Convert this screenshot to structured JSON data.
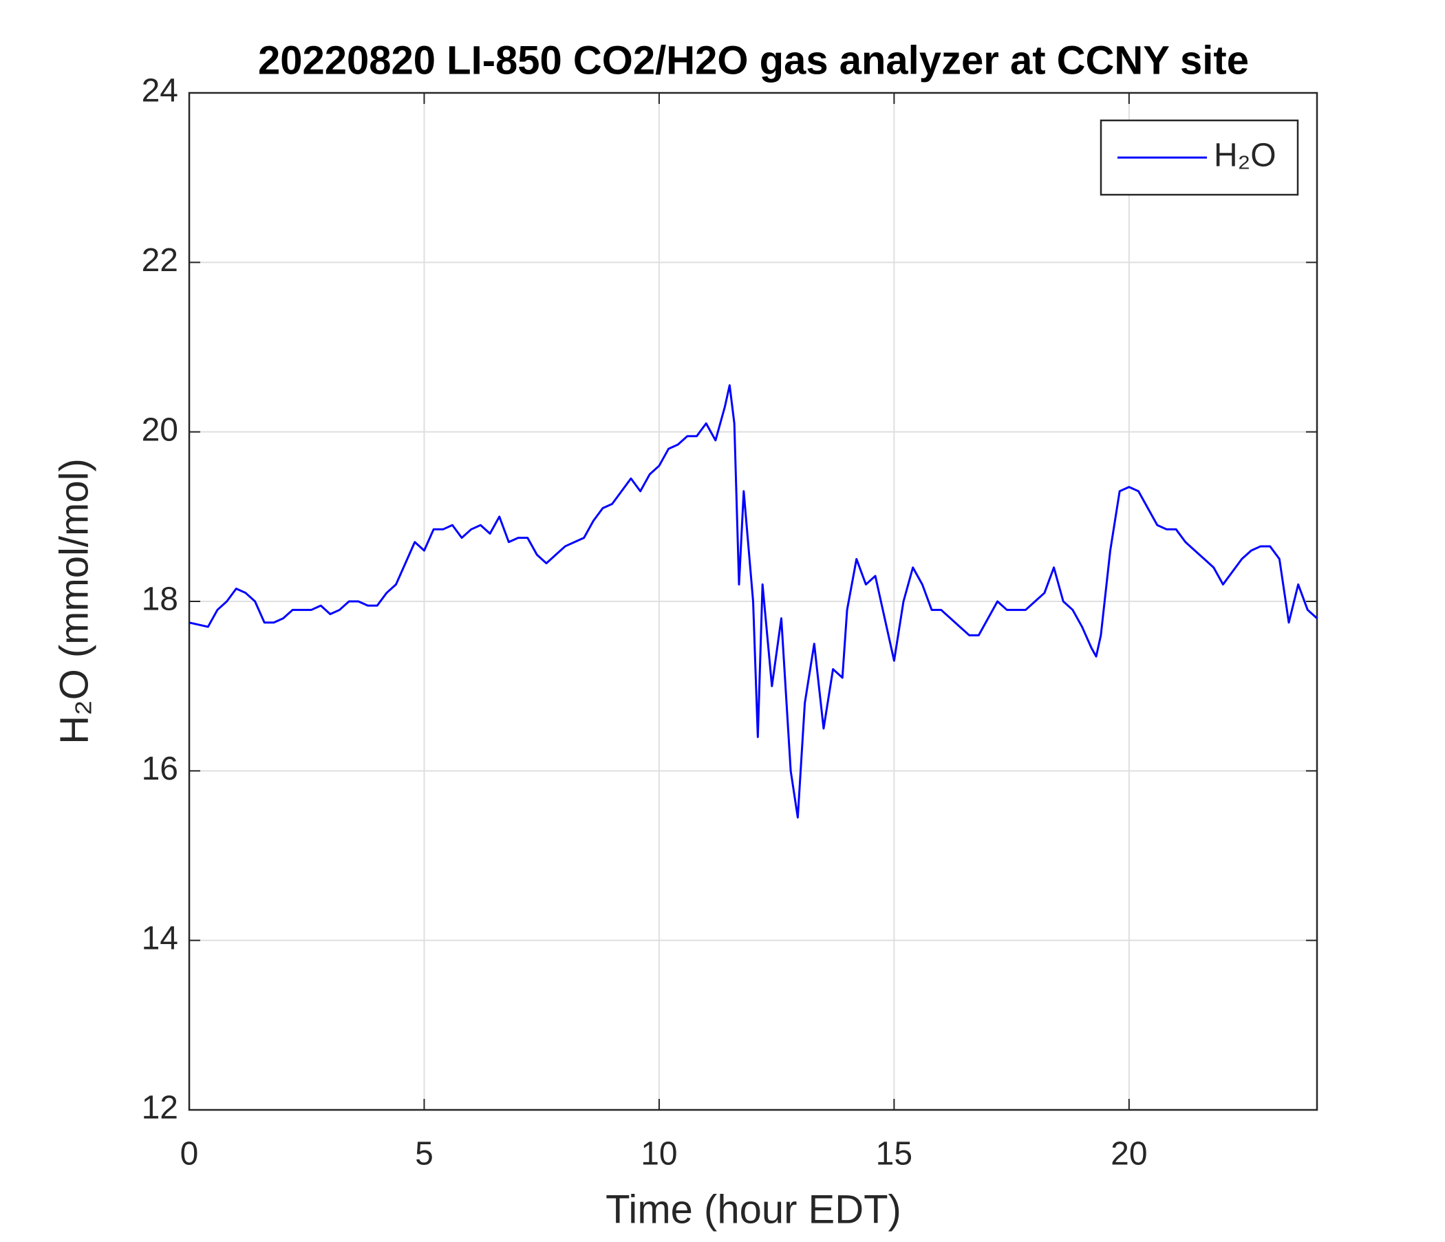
{
  "chart_data": {
    "type": "line",
    "title": "20220820 LI-850 CO2/H2O gas analyzer at CCNY site",
    "xlabel": "Time (hour EDT)",
    "ylabel": "H₂O (mmol/mol)",
    "x": [
      0,
      0.4,
      0.6,
      0.8,
      1.0,
      1.2,
      1.4,
      1.6,
      1.8,
      2.0,
      2.2,
      2.4,
      2.6,
      2.8,
      3.0,
      3.2,
      3.4,
      3.6,
      3.8,
      4.0,
      4.2,
      4.4,
      4.6,
      4.8,
      5.0,
      5.2,
      5.4,
      5.6,
      5.8,
      6.0,
      6.2,
      6.4,
      6.6,
      6.8,
      7.0,
      7.2,
      7.4,
      7.6,
      7.8,
      8.0,
      8.2,
      8.4,
      8.6,
      8.8,
      9.0,
      9.2,
      9.4,
      9.6,
      9.8,
      10.0,
      10.2,
      10.4,
      10.6,
      10.8,
      11.0,
      11.2,
      11.4,
      11.5,
      11.6,
      11.7,
      11.8,
      12.0,
      12.1,
      12.2,
      12.4,
      12.6,
      12.8,
      12.95,
      13.1,
      13.3,
      13.5,
      13.7,
      13.9,
      14.0,
      14.2,
      14.4,
      14.6,
      14.8,
      15.0,
      15.2,
      15.4,
      15.6,
      15.8,
      16.0,
      16.2,
      16.4,
      16.6,
      16.8,
      17.0,
      17.2,
      17.4,
      17.6,
      17.8,
      18.0,
      18.2,
      18.4,
      18.6,
      18.8,
      19.0,
      19.2,
      19.3,
      19.4,
      19.6,
      19.8,
      20.0,
      20.2,
      20.4,
      20.6,
      20.8,
      21.0,
      21.2,
      21.4,
      21.6,
      21.8,
      22.0,
      22.2,
      22.4,
      22.6,
      22.8,
      23.0,
      23.2,
      23.4,
      23.6,
      23.8,
      24.0
    ],
    "series": [
      {
        "name": "H₂O",
        "color": "#0000ff",
        "values": [
          17.75,
          17.7,
          17.9,
          18.0,
          18.15,
          18.1,
          18.0,
          17.75,
          17.75,
          17.8,
          17.9,
          17.9,
          17.9,
          17.95,
          17.85,
          17.9,
          18.0,
          18.0,
          17.95,
          17.95,
          18.1,
          18.2,
          18.45,
          18.7,
          18.6,
          18.85,
          18.85,
          18.9,
          18.75,
          18.85,
          18.9,
          18.8,
          19.0,
          18.7,
          18.75,
          18.75,
          18.55,
          18.45,
          18.55,
          18.65,
          18.7,
          18.75,
          18.95,
          19.1,
          19.15,
          19.3,
          19.45,
          19.3,
          19.5,
          19.6,
          19.8,
          19.85,
          19.95,
          19.95,
          20.1,
          19.9,
          20.3,
          20.55,
          20.1,
          18.2,
          19.3,
          18.0,
          16.4,
          18.2,
          17.0,
          17.8,
          16.0,
          15.45,
          16.8,
          17.5,
          16.5,
          17.2,
          17.1,
          17.9,
          18.5,
          18.2,
          18.3,
          17.8,
          17.3,
          18.0,
          18.4,
          18.2,
          17.9,
          17.9,
          17.8,
          17.7,
          17.6,
          17.6,
          17.8,
          18.0,
          17.9,
          17.9,
          17.9,
          18.0,
          18.1,
          18.4,
          18.0,
          17.9,
          17.7,
          17.45,
          17.35,
          17.6,
          18.6,
          19.3,
          19.35,
          19.3,
          19.1,
          18.9,
          18.85,
          18.85,
          18.7,
          18.6,
          18.5,
          18.4,
          18.2,
          18.35,
          18.5,
          18.6,
          18.65,
          18.65,
          18.5,
          17.75,
          18.2,
          17.9,
          17.8
        ]
      }
    ],
    "xlim": [
      0,
      24
    ],
    "xticks": [
      0,
      5,
      10,
      15,
      20
    ],
    "ylim": [
      12,
      24
    ],
    "yticks": [
      12,
      14,
      16,
      18,
      20,
      22,
      24
    ],
    "grid": true,
    "legend": "northeast"
  }
}
